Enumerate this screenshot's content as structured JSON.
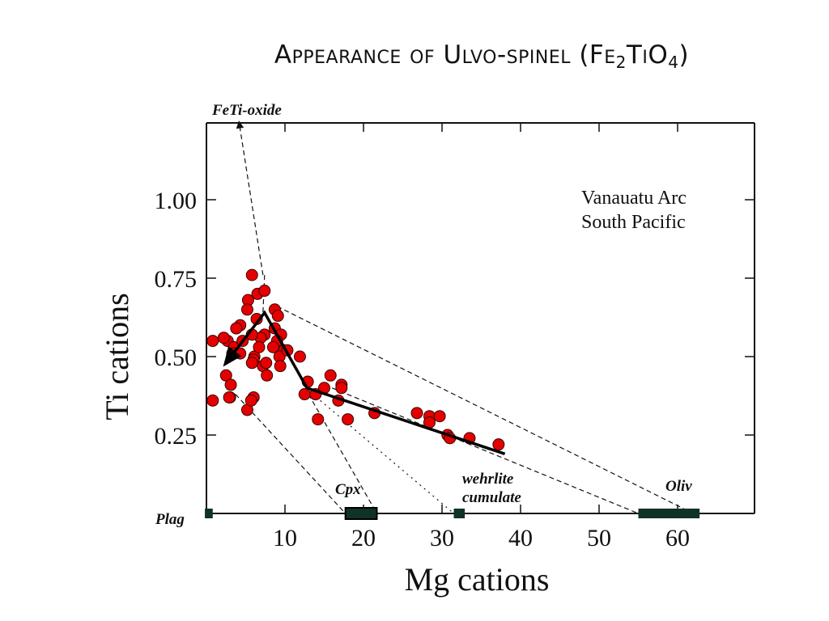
{
  "title": {
    "main": "Appearance of Ulvo-spinel (Fe",
    "sub1": "2",
    "mid": "TiO",
    "sub2": "4",
    "end": ")"
  },
  "chart_data": {
    "type": "scatter",
    "title": "Appearance of Ulvo-spinel (Fe2TiO4)",
    "xlabel": "Mg cations",
    "ylabel": "Ti cations",
    "xlim": [
      0,
      70
    ],
    "ylim": [
      0,
      1.25
    ],
    "x_ticks": [
      10,
      20,
      30,
      40,
      50,
      60
    ],
    "x_tick_labels": [
      "10",
      "20",
      "30",
      "40",
      "50",
      "60"
    ],
    "y_ticks": [
      0.25,
      0.5,
      0.75,
      1.0
    ],
    "y_tick_labels": [
      "0.25",
      "0.50",
      "0.75",
      "1.00"
    ],
    "grid": false,
    "annotation_box": [
      "Vanauatu Arc",
      "South Pacific"
    ],
    "marker_color": "#e50000",
    "series": [
      {
        "name": "samples",
        "points": [
          [
            5.8,
            0.76
          ],
          [
            5.3,
            0.68
          ],
          [
            6.5,
            0.7
          ],
          [
            7.4,
            0.71
          ],
          [
            5.2,
            0.65
          ],
          [
            6.4,
            0.62
          ],
          [
            8.7,
            0.65
          ],
          [
            9.1,
            0.63
          ],
          [
            8.7,
            0.59
          ],
          [
            7.4,
            0.57
          ],
          [
            9.5,
            0.57
          ],
          [
            9.0,
            0.55
          ],
          [
            9.9,
            0.52
          ],
          [
            6.9,
            0.56
          ],
          [
            5.8,
            0.57
          ],
          [
            4.3,
            0.6
          ],
          [
            3.8,
            0.59
          ],
          [
            2.7,
            0.55
          ],
          [
            2.2,
            0.56
          ],
          [
            3.5,
            0.53
          ],
          [
            4.6,
            0.55
          ],
          [
            3.3,
            0.51
          ],
          [
            4.3,
            0.51
          ],
          [
            6.1,
            0.5
          ],
          [
            6.7,
            0.53
          ],
          [
            8.5,
            0.53
          ],
          [
            9.3,
            0.5
          ],
          [
            10.3,
            0.52
          ],
          [
            11.9,
            0.5
          ],
          [
            7.2,
            0.47
          ],
          [
            7.7,
            0.44
          ],
          [
            6.0,
            0.49
          ],
          [
            5.8,
            0.48
          ],
          [
            7.6,
            0.48
          ],
          [
            9.4,
            0.47
          ],
          [
            0.8,
            0.36
          ],
          [
            2.5,
            0.44
          ],
          [
            3.1,
            0.41
          ],
          [
            3.0,
            0.37
          ],
          [
            5.2,
            0.33
          ],
          [
            6.0,
            0.37
          ],
          [
            2.9,
            0.37
          ],
          [
            12.9,
            0.42
          ],
          [
            12.5,
            0.38
          ],
          [
            15.0,
            0.4
          ],
          [
            15.8,
            0.44
          ],
          [
            17.2,
            0.41
          ],
          [
            17.2,
            0.4
          ],
          [
            16.8,
            0.36
          ],
          [
            13.9,
            0.38
          ],
          [
            14.2,
            0.3
          ],
          [
            18.0,
            0.3
          ],
          [
            21.4,
            0.32
          ],
          [
            26.8,
            0.32
          ],
          [
            28.4,
            0.31
          ],
          [
            29.7,
            0.31
          ],
          [
            28.4,
            0.29
          ],
          [
            30.7,
            0.25
          ],
          [
            31.0,
            0.24
          ],
          [
            33.5,
            0.24
          ],
          [
            37.2,
            0.22
          ],
          [
            0.8,
            0.55
          ],
          [
            5.7,
            0.36
          ]
        ]
      }
    ],
    "trend_line": {
      "points": [
        [
          2.5,
          0.48
        ],
        [
          7.4,
          0.64
        ],
        [
          12.8,
          0.4
        ],
        [
          38.0,
          0.19
        ]
      ],
      "arrow_at_start": true
    },
    "mineral_bars": [
      {
        "label": "Plag",
        "x_range": [
          -0.2,
          0.8
        ],
        "y": 0
      },
      {
        "label": "Cpx",
        "x_range": [
          17.7,
          21.7
        ],
        "y": 0
      },
      {
        "label": "wehrlite cumulate",
        "x_range": [
          31.5,
          32.9
        ],
        "y": 0
      },
      {
        "label": "Oliv",
        "x_range": [
          55.0,
          62.8
        ],
        "y": 0
      }
    ],
    "tie_lines": [
      {
        "style": "dashed",
        "from": [
          7.2,
          0.76
        ],
        "to": [
          4.2,
          1.24
        ],
        "arrow": true,
        "label": "FeTi-oxide"
      },
      {
        "style": "dashed",
        "from": [
          7.4,
          0.76
        ],
        "to": [
          7.2,
          0.64
        ]
      },
      {
        "style": "dashed",
        "from": [
          9.0,
          0.66
        ],
        "to": [
          62.0,
          0.0
        ]
      },
      {
        "style": "dashed",
        "from": [
          16.0,
          0.4
        ],
        "to": [
          55.0,
          0.0
        ]
      },
      {
        "style": "dashed",
        "from": [
          3.7,
          0.38
        ],
        "to": [
          17.7,
          0.0
        ]
      },
      {
        "style": "dashed",
        "from": [
          13.0,
          0.38
        ],
        "to": [
          21.7,
          0.0
        ]
      },
      {
        "style": "dotted",
        "from": [
          14.5,
          0.36
        ],
        "to": [
          31.5,
          0.0
        ]
      }
    ]
  }
}
